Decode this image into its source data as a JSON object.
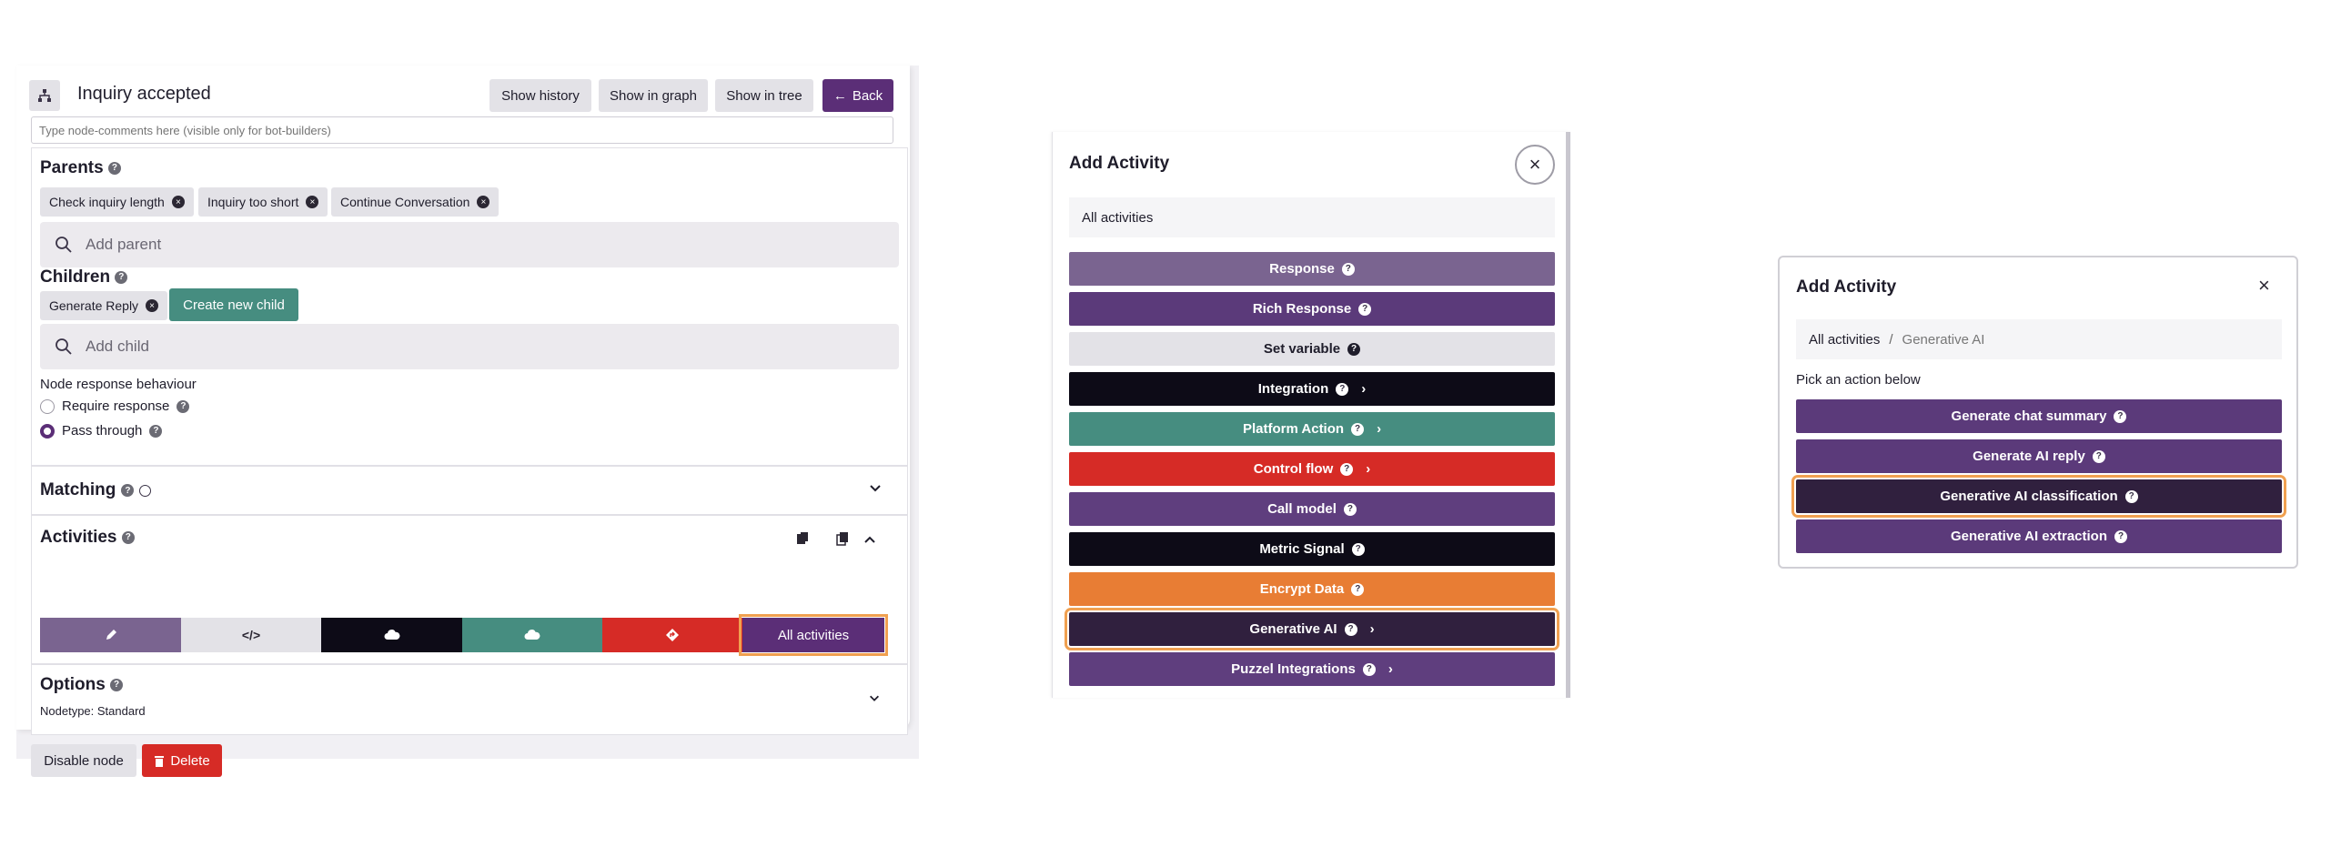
{
  "node_editor": {
    "title": "Inquiry accepted",
    "icon": "sitemap-icon",
    "header_buttons": {
      "show_history": "Show history",
      "show_in_graph": "Show in graph",
      "show_in_tree": "Show in tree",
      "back": "Back"
    },
    "comment_placeholder": "Type node-comments here (visible only for bot-builders)",
    "parents": {
      "title": "Parents",
      "chips": [
        "Check inquiry length",
        "Inquiry too short",
        "Continue Conversation"
      ],
      "search_placeholder": "Add parent"
    },
    "children": {
      "title": "Children",
      "chips": [
        "Generate Reply"
      ],
      "create_button": "Create new child",
      "search_placeholder": "Add child"
    },
    "response_behaviour": {
      "label": "Node response behaviour",
      "options": [
        "Require response",
        "Pass through"
      ],
      "selected": "Pass through"
    },
    "matching": {
      "title": "Matching"
    },
    "activities": {
      "title": "Activities",
      "all_button": "All activities",
      "segments": [
        {
          "icon": "pencil-icon",
          "color": "#7a6490"
        },
        {
          "icon": "code-icon",
          "color": "#e3e2e7"
        },
        {
          "icon": "cloud-icon",
          "color": "#0d0b17"
        },
        {
          "icon": "cloud-icon",
          "color": "#468d80"
        },
        {
          "icon": "flow-icon",
          "color": "#d62b26"
        }
      ]
    },
    "options": {
      "title": "Options",
      "nodetype": "Nodetype: Standard"
    },
    "footer": {
      "disable": "Disable node",
      "delete": "Delete"
    }
  },
  "add_activity_modal": {
    "title": "Add Activity",
    "breadcrumb": "All activities",
    "buttons": [
      {
        "label": "Response",
        "color": "#7a6490",
        "chevron": false
      },
      {
        "label": "Rich Response",
        "color": "#5b3a7a",
        "chevron": false
      },
      {
        "label": "Set variable",
        "color": "#e3e2e7",
        "chevron": false
      },
      {
        "label": "Integration",
        "color": "#0d0b17",
        "chevron": true
      },
      {
        "label": "Platform Action",
        "color": "#468d80",
        "chevron": true
      },
      {
        "label": "Control flow",
        "color": "#d62b26",
        "chevron": true
      },
      {
        "label": "Call model",
        "color": "#5f3e7e",
        "chevron": false
      },
      {
        "label": "Metric Signal",
        "color": "#0d0b17",
        "chevron": false
      },
      {
        "label": "Encrypt Data",
        "color": "#e87d34",
        "chevron": false
      },
      {
        "label": "Generative AI",
        "color": "#30203e",
        "chevron": true
      },
      {
        "label": "Puzzel Integrations",
        "color": "#5f3e7e",
        "chevron": true
      }
    ],
    "highlighted": "Generative AI"
  },
  "generative_ai_modal": {
    "title": "Add Activity",
    "breadcrumb_root": "All activities",
    "breadcrumb_separator": "/",
    "breadcrumb_current": "Generative AI",
    "prompt": "Pick an action below",
    "buttons": [
      {
        "label": "Generate chat summary",
        "color": "#5b3a7a"
      },
      {
        "label": "Generate AI reply",
        "color": "#5b3a7a"
      },
      {
        "label": "Generative AI classification",
        "color": "#30203e"
      },
      {
        "label": "Generative AI extraction",
        "color": "#5b3a7a"
      }
    ],
    "highlighted": "Generative AI classification"
  },
  "colors": {
    "accent_purple": "#5b2e77",
    "highlight_orange": "#f0a050",
    "teal": "#468d80",
    "red": "#d62b26"
  }
}
